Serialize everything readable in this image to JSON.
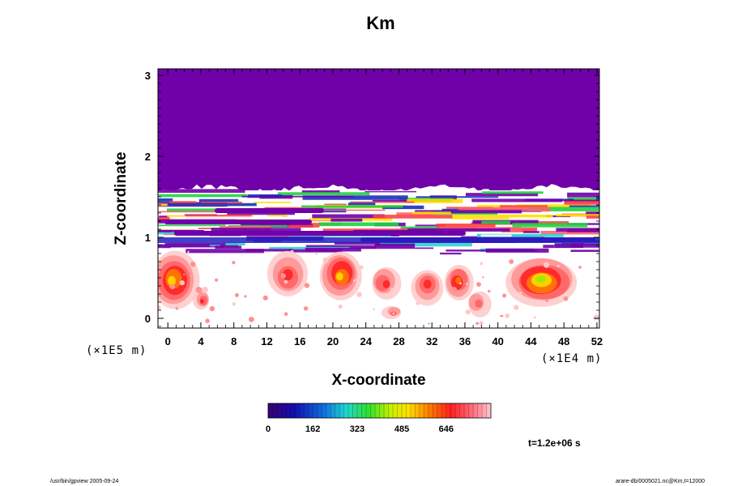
{
  "chart_data": {
    "type": "heatmap",
    "title": "Km",
    "xlabel": "X-coordinate",
    "ylabel": "Z-coordinate",
    "x_scale_note": "(×1E4 m)",
    "y_scale_note": "(×1E5 m)",
    "x_ticks": [
      "0",
      "4",
      "8",
      "12",
      "16",
      "20",
      "24",
      "28",
      "32",
      "36",
      "40",
      "44",
      "48",
      "52"
    ],
    "y_ticks": [
      "0",
      "1",
      "2",
      "3"
    ],
    "xlim": [
      -1.2,
      52.3
    ],
    "ylim": [
      -0.12,
      3.08
    ],
    "colorbar": {
      "ticks": [
        "0",
        "162",
        "323",
        "485",
        "646"
      ],
      "tick_values": [
        0,
        162,
        323,
        485,
        646
      ],
      "range": [
        0,
        808
      ]
    },
    "time_label": "t=1.2e+06 s",
    "grid": false
  },
  "footer": {
    "left": "/usr/bin/gpview 2005-09-24",
    "right": "arare-db/0005021.nc@Km,t=12000"
  },
  "colors": {
    "upper_layer": "#7000a8",
    "background_field": "#ffffff"
  }
}
